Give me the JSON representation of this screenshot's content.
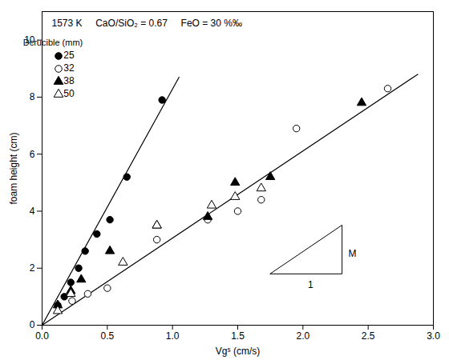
{
  "chart_data": {
    "type": "scatter",
    "xlabel": "Vgˢ (cm/s)",
    "ylabel": "foam height (cm)",
    "xlim": [
      0,
      3.0
    ],
    "ylim": [
      0,
      11
    ],
    "xticks": [
      {
        "value": 0,
        "label": "0.0"
      },
      {
        "value": 0.5,
        "label": "0.5"
      },
      {
        "value": 1.0,
        "label": "1.0"
      },
      {
        "value": 1.5,
        "label": "1.5"
      },
      {
        "value": 2.0,
        "label": "2.0"
      },
      {
        "value": 2.5,
        "label": "2.5"
      },
      {
        "value": 3.0,
        "label": "3.0"
      }
    ],
    "yticks": [
      0,
      2,
      4,
      6,
      8,
      10
    ],
    "legend": "upper left",
    "legend_title": "Dcrucible (mm)",
    "series": [
      {
        "name": "25",
        "marker": "circle",
        "color": "black",
        "x": [
          0.12,
          0.17,
          0.22,
          0.28,
          0.33,
          0.42,
          0.52,
          0.65,
          0.92
        ],
        "values": [
          0.7,
          1.0,
          1.5,
          2.0,
          2.6,
          3.2,
          3.7,
          5.2,
          7.9
        ],
        "fit": {
          "x": [
            0.0,
            1.05
          ],
          "y": [
            0.0,
            8.7
          ]
        }
      },
      {
        "name": "32",
        "marker": "circle-open",
        "color": "black",
        "x": [
          0.23,
          0.35,
          0.5,
          0.88,
          1.27,
          1.5,
          1.68,
          1.95,
          2.65
        ],
        "values": [
          0.85,
          1.1,
          1.3,
          3.0,
          3.7,
          4.0,
          4.4,
          6.9,
          8.3
        ]
      },
      {
        "name": "38",
        "marker": "triangle",
        "color": "black",
        "x": [
          0.12,
          0.22,
          0.3,
          0.52,
          0.88,
          1.27,
          1.48,
          1.75,
          2.45
        ],
        "values": [
          0.7,
          1.2,
          1.6,
          2.6,
          3.5,
          3.8,
          5.0,
          5.2,
          7.8
        ],
        "fit": {
          "x": [
            0.0,
            2.88
          ],
          "y": [
            0.0,
            8.8
          ]
        }
      },
      {
        "name": "50",
        "marker": "triangle-open",
        "color": "black",
        "x": [
          0.12,
          0.22,
          0.62,
          0.88,
          1.3,
          1.48,
          1.68
        ],
        "values": [
          0.5,
          1.1,
          2.2,
          3.5,
          4.2,
          4.5,
          4.8
        ]
      }
    ],
    "annotations": [
      {
        "text": "1573 K     CaO/SiO₂ = 0.67     FeO = 30 %‰"
      },
      {
        "text": "M",
        "x": 2.33,
        "y": 2.65
      },
      {
        "text": "1",
        "x": 2.02,
        "y": 1.55
      }
    ],
    "slope_triangle": {
      "x": [
        1.75,
        2.3,
        2.3
      ],
      "y": [
        1.8,
        1.8,
        3.5
      ]
    }
  }
}
